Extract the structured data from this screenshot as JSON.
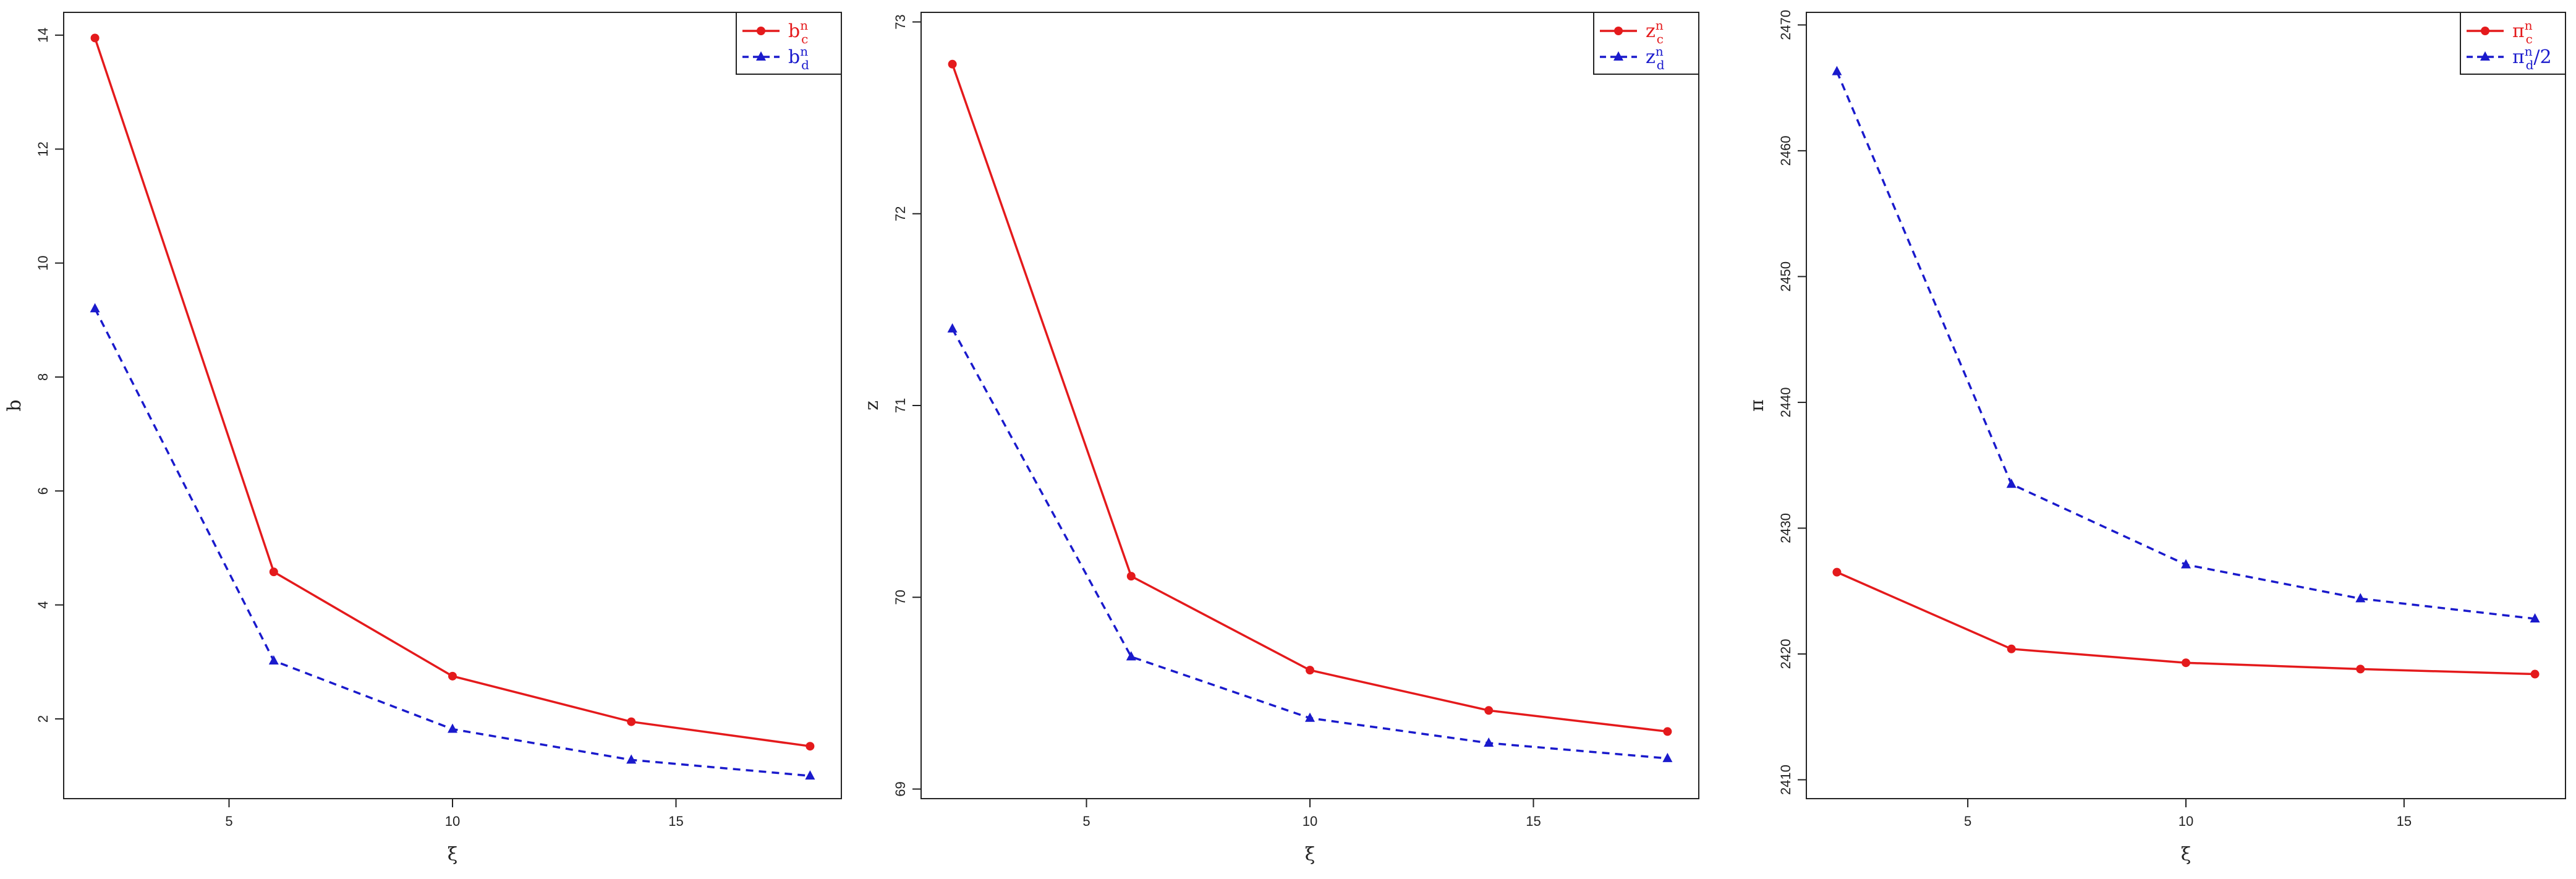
{
  "chart_data": [
    {
      "type": "line",
      "xlabel": "ξ",
      "ylabel": "b",
      "xlim": [
        1.3,
        18.7
      ],
      "ylim": [
        0.6,
        14.4
      ],
      "xticks": [
        5,
        10,
        15
      ],
      "yticks": [
        2,
        4,
        6,
        8,
        10,
        12,
        14
      ],
      "legend_position": "top-right",
      "grid": false,
      "x": [
        2,
        6,
        10,
        14,
        18
      ],
      "series": [
        {
          "name": "b",
          "name_sup": "n",
          "name_sub": "c",
          "name_suffix": "",
          "color": "#e41a1c",
          "dash": "solid",
          "marker": "circle",
          "values": [
            13.95,
            4.58,
            2.75,
            1.95,
            1.52
          ]
        },
        {
          "name": "b",
          "name_sup": "n",
          "name_sub": "d",
          "name_suffix": "",
          "color": "#1a1acc",
          "dash": "dashed",
          "marker": "triangle",
          "values": [
            9.2,
            3.02,
            1.82,
            1.28,
            1.0
          ]
        }
      ]
    },
    {
      "type": "line",
      "xlabel": "ξ",
      "ylabel": "z",
      "xlim": [
        1.3,
        18.7
      ],
      "ylim": [
        68.95,
        73.05
      ],
      "xticks": [
        5,
        10,
        15
      ],
      "yticks": [
        69,
        70,
        71,
        72,
        73
      ],
      "legend_position": "top-right",
      "grid": false,
      "x": [
        2,
        6,
        10,
        14,
        18
      ],
      "series": [
        {
          "name": "z",
          "name_sup": "n",
          "name_sub": "c",
          "name_suffix": "",
          "color": "#e41a1c",
          "dash": "solid",
          "marker": "circle",
          "values": [
            72.78,
            70.11,
            69.62,
            69.41,
            69.3
          ]
        },
        {
          "name": "z",
          "name_sup": "n",
          "name_sub": "d",
          "name_suffix": "",
          "color": "#1a1acc",
          "dash": "dashed",
          "marker": "triangle",
          "values": [
            71.4,
            69.69,
            69.37,
            69.24,
            69.16
          ]
        }
      ]
    },
    {
      "type": "line",
      "xlabel": "ξ",
      "ylabel": "π",
      "xlim": [
        1.3,
        18.7
      ],
      "ylim": [
        2408.5,
        2471.0
      ],
      "xticks": [
        5,
        10,
        15
      ],
      "yticks": [
        2410,
        2420,
        2430,
        2440,
        2450,
        2460,
        2470
      ],
      "legend_position": "top-right",
      "grid": false,
      "x": [
        2,
        6,
        10,
        14,
        18
      ],
      "series": [
        {
          "name": "π",
          "name_sup": "n",
          "name_sub": "c",
          "name_suffix": "",
          "color": "#e41a1c",
          "dash": "solid",
          "marker": "circle",
          "values": [
            2426.5,
            2420.4,
            2419.3,
            2418.8,
            2418.4
          ]
        },
        {
          "name": "π",
          "name_sup": "n",
          "name_sub": "d",
          "name_suffix": "/2",
          "color": "#1a1acc",
          "dash": "dashed",
          "marker": "triangle",
          "values": [
            2466.3,
            2433.5,
            2427.1,
            2424.4,
            2422.8
          ]
        }
      ]
    }
  ]
}
